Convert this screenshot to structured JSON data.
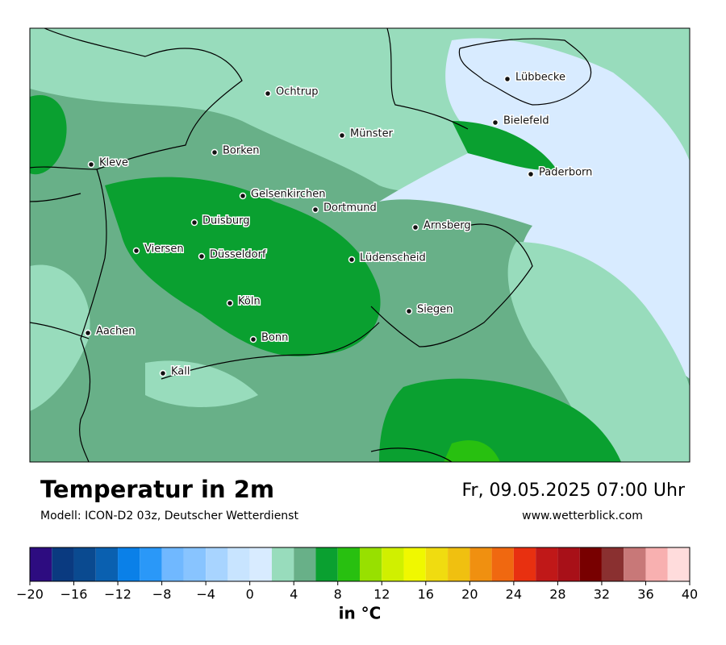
{
  "header": {
    "title": "Temperatur in 2m",
    "subtitle": "Modell: ICON-D2 03z, Deutscher Wetterdienst",
    "datetime": "Fr, 09.05.2025 07:00 Uhr",
    "website": "www.wetterblick.com"
  },
  "cities": [
    "Lübbecke",
    "Ochtrup",
    "Bielefeld",
    "Münster",
    "Borken",
    "Kleve",
    "Paderborn",
    "Gelsenkirchen",
    "Dortmund",
    "Duisburg",
    "Arnsberg",
    "Viersen",
    "Düsseldorf",
    "Lüdenscheid",
    "Köln",
    "Siegen",
    "Aachen",
    "Bonn",
    "Kall"
  ],
  "colorbar": {
    "range": [
      -20,
      40
    ],
    "colors": [
      "#2d0c80",
      "#0a3a80",
      "#0a4a90",
      "#0a60b0",
      "#0a80e8",
      "#2a98f8",
      "#70b8ff",
      "#88c4ff",
      "#a8d4ff",
      "#c8e4ff",
      "#d8ebff",
      "#98dcbc",
      "#68b088",
      "#0aa030",
      "#28c010",
      "#98e000",
      "#d0f000",
      "#f0f800",
      "#f0dc10",
      "#f0c010",
      "#f09010",
      "#f06810",
      "#e83010",
      "#c01818",
      "#a81018",
      "#780000",
      "#8a3030",
      "#c87878",
      "#f8b0b0",
      "#ffdcdc"
    ],
    "ticks": [
      {
        "value": -20,
        "label": "−20"
      },
      {
        "value": -16,
        "label": "−16"
      },
      {
        "value": -12,
        "label": "−12"
      },
      {
        "value": -8,
        "label": "−8"
      },
      {
        "value": -4,
        "label": "−4"
      },
      0,
      4,
      8,
      12,
      16,
      20,
      24,
      28,
      32,
      36,
      40
    ],
    "label": "in °C"
  }
}
